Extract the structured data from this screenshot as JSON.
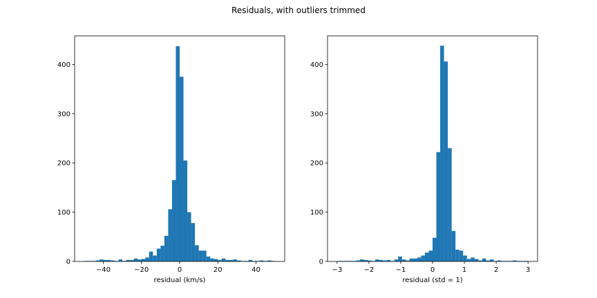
{
  "figure": {
    "title": "Residuals, with outliers trimmed"
  },
  "chart_data": [
    {
      "type": "bar",
      "histogram": true,
      "title": "",
      "xlabel": "residual (km/s)",
      "ylabel": "",
      "xlim": [
        -55,
        55
      ],
      "ylim": [
        0,
        458
      ],
      "xticks": [
        -40,
        -20,
        0,
        20,
        40
      ],
      "yticks": [
        0,
        100,
        200,
        300,
        400
      ],
      "grid": false,
      "color": "#1f77b4",
      "bin_start": -50,
      "bin_width": 2,
      "values": [
        1,
        1,
        1,
        2,
        4,
        3,
        3,
        2,
        1,
        4,
        1,
        3,
        3,
        6,
        4,
        5,
        8,
        20,
        12,
        26,
        32,
        52,
        106,
        165,
        437,
        375,
        205,
        100,
        78,
        33,
        22,
        22,
        10,
        6,
        5,
        3,
        6,
        3,
        3,
        4,
        2,
        1,
        1,
        3,
        1,
        1,
        2,
        1,
        2,
        1
      ]
    },
    {
      "type": "bar",
      "histogram": true,
      "title": "",
      "xlabel": "residual (std = 1)",
      "ylabel": "",
      "xlim": [
        -3.3,
        3.3
      ],
      "ylim": [
        0,
        458
      ],
      "xticks": [
        -3,
        -2,
        -1,
        0,
        1,
        2,
        3
      ],
      "yticks": [
        0,
        100,
        200,
        300,
        400
      ],
      "grid": false,
      "color": "#1f77b4",
      "bin_start": -3,
      "bin_width": 0.12,
      "values": [
        1,
        1,
        1,
        1,
        1,
        2,
        4,
        3,
        2,
        1,
        4,
        3,
        2,
        3,
        1,
        4,
        10,
        4,
        2,
        6,
        6,
        8,
        12,
        18,
        22,
        48,
        222,
        438,
        406,
        230,
        62,
        24,
        22,
        12,
        5,
        8,
        5,
        2,
        6,
        2,
        4,
        1,
        2,
        1,
        1,
        1,
        2,
        1,
        1,
        1
      ]
    }
  ]
}
